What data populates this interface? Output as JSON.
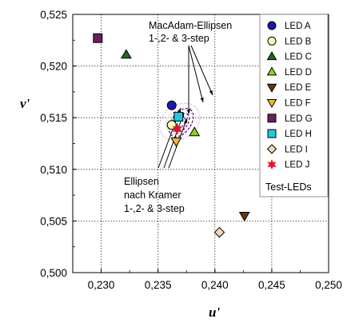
{
  "chart_data": {
    "type": "scatter",
    "xlabel": "u'",
    "ylabel": "v'",
    "xlim": [
      0.2275,
      0.25
    ],
    "ylim": [
      0.5,
      0.525
    ],
    "x_ticks": [
      "0,230",
      "0,235",
      "0,240",
      "0,245",
      "0,250"
    ],
    "y_ticks": [
      "0,500",
      "0,505",
      "0,510",
      "0,515",
      "0,520",
      "0,525"
    ],
    "x_tick_values": [
      0.23,
      0.235,
      0.24,
      0.245,
      0.25
    ],
    "y_tick_values": [
      0.5,
      0.505,
      0.51,
      0.515,
      0.52,
      0.525
    ],
    "grid": true,
    "legend_position": "top-right",
    "legend_title": "Test-LEDs",
    "series": [
      {
        "name": "LED A",
        "marker": "circle",
        "color": "#1a1aa8",
        "x": 0.2362,
        "y": 0.5162
      },
      {
        "name": "LED B",
        "marker": "circle",
        "color": "#ffffb8",
        "x": 0.2362,
        "y": 0.5143
      },
      {
        "name": "LED C",
        "marker": "triangle-up",
        "color": "#1f6b1f",
        "x": 0.2322,
        "y": 0.5211
      },
      {
        "name": "LED D",
        "marker": "triangle-up",
        "color": "#8ad424",
        "x": 0.2382,
        "y": 0.5136
      },
      {
        "name": "LED E",
        "marker": "triangle-down",
        "color": "#6b3410",
        "x": 0.2426,
        "y": 0.5055
      },
      {
        "name": "LED F",
        "marker": "triangle-down",
        "color": "#f0b838",
        "x": 0.2366,
        "y": 0.5127
      },
      {
        "name": "LED G",
        "marker": "square",
        "color": "#6b1f58",
        "x": 0.2297,
        "y": 0.5227
      },
      {
        "name": "LED H",
        "marker": "square",
        "color": "#22c8e0",
        "x": 0.2368,
        "y": 0.5151
      },
      {
        "name": "LED I",
        "marker": "diamond",
        "color": "#f5d7b8",
        "x": 0.2404,
        "y": 0.5039
      },
      {
        "name": "LED J",
        "marker": "star",
        "color": "#e8112d",
        "x": 0.2367,
        "y": 0.5139
      }
    ],
    "annotations": [
      {
        "lines": [
          "MacAdam-Ellipsen",
          "1-,2- & 3-step"
        ]
      },
      {
        "lines": [
          "Ellipsen",
          "nach Kramer",
          "1-,2- & 3-step"
        ]
      }
    ]
  }
}
